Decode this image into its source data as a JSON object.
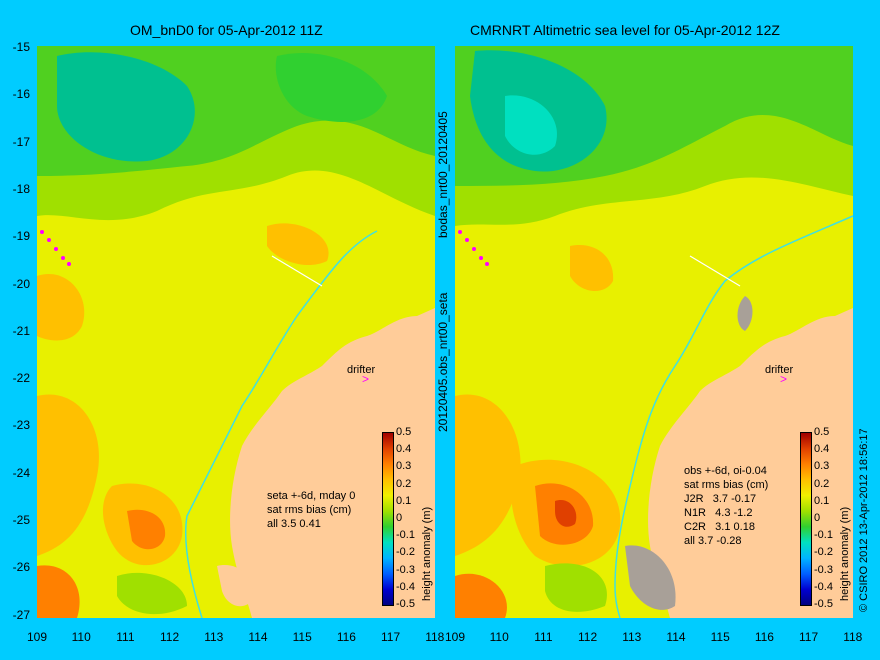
{
  "left_panel": {
    "title": "OM_bnD0 for 05-Apr-2012 11Z",
    "annotation_lines": [
      "seta +-6d, mday 0",
      "sat rms bias (cm)",
      "all 3.5 0.41"
    ],
    "drifter_label": "drifter",
    "colorbar_label": "height anomaly (m)",
    "side_label_top": "bodas_nrt00_20120405",
    "side_label_bottom": "20120405.obs_nrt00_seta"
  },
  "right_panel": {
    "title": "CMRNRT Altimetric sea level  for 05-Apr-2012 12Z",
    "annotation_lines": [
      "obs +-6d, oi-0.04",
      "sat rms bias (cm)",
      "J2R   3.7 -0.17",
      "N1R   4.3 -1.2",
      "C2R   3.1 0.18",
      "all 3.7 -0.28"
    ],
    "drifter_label": "drifter",
    "colorbar_label": "height anomaly (m)",
    "credit": "© CSIRO 2012   13-Apr-2012 18:56:17"
  },
  "axes": {
    "y_ticks": [
      "-15",
      "-16",
      "-17",
      "-18",
      "-19",
      "-20",
      "-21",
      "-22",
      "-23",
      "-24",
      "-25",
      "-26",
      "-27"
    ],
    "x_ticks_left": [
      "109",
      "110",
      "111",
      "112",
      "113",
      "114",
      "115",
      "116",
      "117",
      "118"
    ],
    "x_ticks_right": [
      "109",
      "110",
      "111",
      "112",
      "113",
      "114",
      "115",
      "116",
      "117",
      "118"
    ],
    "lon_range": [
      109,
      118
    ],
    "lat_range": [
      -27,
      -15
    ]
  },
  "colorbar": {
    "ticks": [
      "0.5",
      "0.4",
      "0.3",
      "0.2",
      "0.1",
      "0",
      "-0.1",
      "-0.2",
      "-0.3",
      "-0.4",
      "-0.5"
    ],
    "range": [
      -0.5,
      0.5
    ],
    "colors": [
      "#000080",
      "#0000d0",
      "#0060ff",
      "#00b4ff",
      "#00e0c0",
      "#30d030",
      "#a0e000",
      "#f0f000",
      "#ffc000",
      "#ff8000",
      "#e04000",
      "#a00000"
    ]
  },
  "colors": {
    "background": "#00ccff",
    "land": "#ffcc99",
    "field_base": "#e8f000",
    "contour_green": "#50d020",
    "contour_teal": "#00c090",
    "contour_orange": "#ffa000",
    "drifter_marker": "#ff00ff",
    "coast_isobath": "#40e0e0"
  }
}
